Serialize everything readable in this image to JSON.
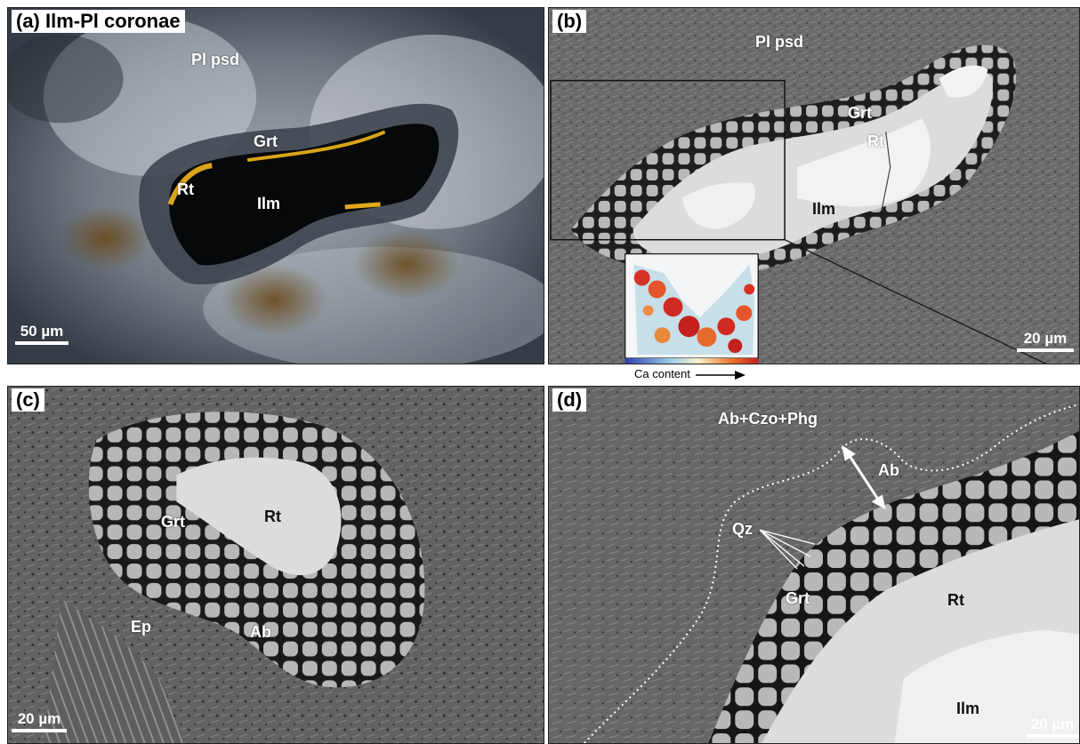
{
  "panels": {
    "a": {
      "tag": "(a) Ilm-Pl coronae",
      "labels": {
        "pl": "Pl psd",
        "grt": "Grt",
        "rt": "Rt",
        "ilm": "Ilm"
      },
      "scale": "50 µm"
    },
    "b": {
      "tag": "(b)",
      "labels": {
        "pl": "Pl psd",
        "grt": "Grt",
        "rt": "Rt",
        "ilm": "Ilm"
      },
      "scale": "20 µm",
      "inset_legend": "Ca content"
    },
    "c": {
      "tag": "(c)",
      "labels": {
        "grt": "Grt",
        "rt": "Rt",
        "ep": "Ep",
        "ab": "Ab"
      },
      "scale": "20 µm"
    },
    "d": {
      "tag": "(d)",
      "labels": {
        "matrix": "Ab+Czo+Phg",
        "ab": "Ab",
        "qz": "Qz",
        "grt": "Grt",
        "rt": "Rt",
        "ilm": "Ilm"
      },
      "scale": "20 µm"
    }
  },
  "colors": {
    "bse_matrix": "#6a6a6a",
    "garnet": "#b9b9b9",
    "rutile": "#dcdcdc",
    "ilmenite": "#f2f2f2",
    "ca_low": "#2a3fb0",
    "ca_high": "#c4201e"
  }
}
